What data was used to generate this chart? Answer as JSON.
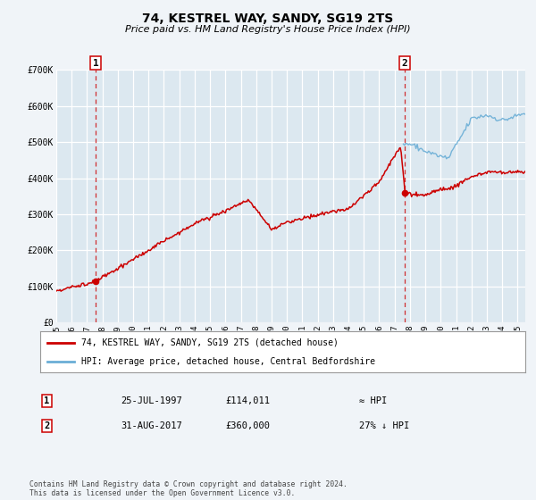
{
  "title": "74, KESTREL WAY, SANDY, SG19 2TS",
  "subtitle": "Price paid vs. HM Land Registry's House Price Index (HPI)",
  "background_color": "#f0f4f8",
  "plot_bg_color": "#dce8f0",
  "hpi_color": "#6aaed6",
  "price_color": "#cc0000",
  "dashed_line_color": "#cc0000",
  "ylim": [
    0,
    700000
  ],
  "xlim_start": 1995.0,
  "xlim_end": 2025.5,
  "sale1_x": 1997.57,
  "sale1_y": 114011,
  "sale1_label": "1",
  "sale2_x": 2017.67,
  "sale2_y": 360000,
  "sale2_label": "2",
  "yticks": [
    0,
    100000,
    200000,
    300000,
    400000,
    500000,
    600000,
    700000
  ],
  "ytick_labels": [
    "£0",
    "£100K",
    "£200K",
    "£300K",
    "£400K",
    "£500K",
    "£600K",
    "£700K"
  ],
  "legend_label_price": "74, KESTREL WAY, SANDY, SG19 2TS (detached house)",
  "legend_label_hpi": "HPI: Average price, detached house, Central Bedfordshire",
  "annotation1_box": "1",
  "annotation1_date": "25-JUL-1997",
  "annotation1_price": "£114,011",
  "annotation1_hpi": "≈ HPI",
  "annotation2_box": "2",
  "annotation2_date": "31-AUG-2017",
  "annotation2_price": "£360,000",
  "annotation2_hpi": "27% ↓ HPI",
  "footer": "Contains HM Land Registry data © Crown copyright and database right 2024.\nThis data is licensed under the Open Government Licence v3.0.",
  "xticks": [
    1995,
    1996,
    1997,
    1998,
    1999,
    2000,
    2001,
    2002,
    2003,
    2004,
    2005,
    2006,
    2007,
    2008,
    2009,
    2010,
    2011,
    2012,
    2013,
    2014,
    2015,
    2016,
    2017,
    2018,
    2019,
    2020,
    2021,
    2022,
    2023,
    2024,
    2025
  ]
}
